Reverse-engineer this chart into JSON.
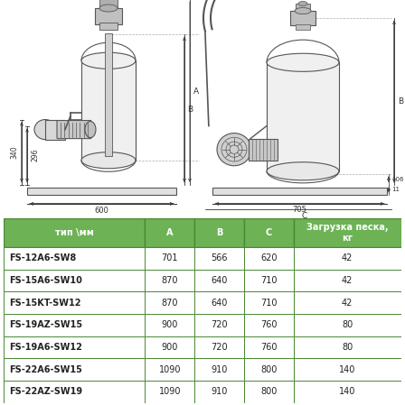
{
  "table_header": [
    "тип \\мм",
    "A",
    "B",
    "C",
    "Загрузка песка,\nкг"
  ],
  "table_rows": [
    [
      "FS-12A6-SW8",
      "701",
      "566",
      "620",
      "42"
    ],
    [
      "FS-15A6-SW10",
      "870",
      "640",
      "710",
      "42"
    ],
    [
      "FS-15KT-SW12",
      "870",
      "640",
      "710",
      "42"
    ],
    [
      "FS-19AZ-SW15",
      "900",
      "720",
      "760",
      "80"
    ],
    [
      "FS-19A6-SW12",
      "900",
      "720",
      "760",
      "80"
    ],
    [
      "FS-22A6-SW15",
      "1090",
      "910",
      "800",
      "140"
    ],
    [
      "FS-22AZ-SW19",
      "1090",
      "910",
      "800",
      "140"
    ]
  ],
  "header_bg": "#6db356",
  "header_text": "#ffffff",
  "border_color": "#4a8a32",
  "text_color": "#222222",
  "bg_color": "#ffffff",
  "line_color": "#555555",
  "dim_color": "#333333"
}
